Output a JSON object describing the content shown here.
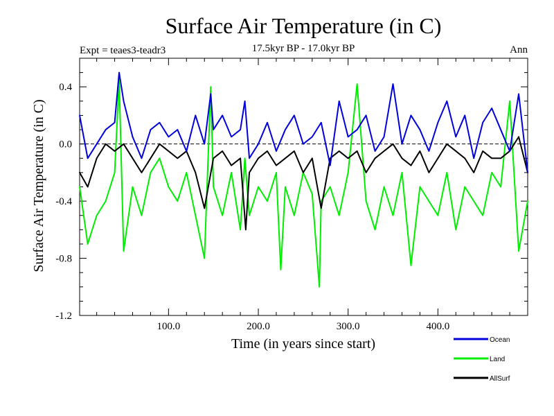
{
  "chart_data": {
    "type": "line",
    "title": "Surface Air Temperature (in C)",
    "subtitle": "17.5kyr BP - 17.0kyr BP",
    "experiment_label": "Expt = teaes3-teadr3",
    "period_label": "Ann",
    "xlabel": "Time (in years since start)",
    "ylabel": "Surface Air Temperature (in C)",
    "xlim": [
      1,
      500
    ],
    "ylim": [
      -1.2,
      0.6
    ],
    "x_ticks": [
      100,
      200,
      300,
      400
    ],
    "x_tick_labels": [
      "100.0",
      "200.0",
      "300.0",
      "400.0"
    ],
    "y_ticks": [
      -1.2,
      -0.8,
      -0.4,
      0.0,
      0.4
    ],
    "y_tick_labels": [
      "-1.2",
      "-0.8",
      "-0.4",
      "0.0",
      "0.4"
    ],
    "reference_line": 0.0,
    "legend_position": "bottom-right",
    "series": [
      {
        "name": "Ocean",
        "color": "#0000dd",
        "x": [
          1,
          10,
          20,
          30,
          40,
          45,
          50,
          60,
          70,
          80,
          90,
          100,
          110,
          120,
          130,
          140,
          147,
          150,
          160,
          170,
          180,
          185,
          190,
          200,
          210,
          220,
          230,
          240,
          250,
          260,
          270,
          280,
          290,
          300,
          310,
          320,
          330,
          340,
          350,
          360,
          370,
          380,
          390,
          400,
          410,
          420,
          430,
          440,
          450,
          460,
          470,
          480,
          490,
          500
        ],
        "values": [
          0.2,
          -0.1,
          0.0,
          0.1,
          0.15,
          0.5,
          0.3,
          0.05,
          -0.1,
          0.1,
          0.15,
          0.05,
          0.1,
          -0.05,
          0.2,
          0.0,
          0.35,
          0.1,
          0.2,
          0.05,
          0.1,
          0.3,
          -0.1,
          0.0,
          0.15,
          -0.05,
          0.1,
          0.2,
          0.0,
          0.05,
          0.15,
          -0.15,
          0.3,
          0.05,
          0.1,
          0.2,
          -0.05,
          0.05,
          0.42,
          0.0,
          0.2,
          0.1,
          -0.05,
          0.15,
          0.3,
          0.05,
          0.2,
          -0.1,
          0.15,
          0.25,
          0.1,
          -0.05,
          0.35,
          -0.2
        ]
      },
      {
        "name": "Land",
        "color": "#00ee00",
        "x": [
          1,
          10,
          20,
          30,
          40,
          45,
          50,
          60,
          70,
          80,
          90,
          100,
          110,
          120,
          130,
          140,
          147,
          150,
          160,
          170,
          180,
          185,
          190,
          200,
          210,
          220,
          225,
          230,
          240,
          250,
          260,
          268,
          270,
          280,
          290,
          300,
          310,
          320,
          330,
          340,
          350,
          360,
          370,
          380,
          390,
          400,
          410,
          420,
          430,
          440,
          450,
          460,
          470,
          480,
          490,
          500
        ],
        "values": [
          -0.3,
          -0.7,
          -0.5,
          -0.4,
          -0.2,
          0.45,
          -0.75,
          -0.3,
          -0.5,
          -0.2,
          -0.1,
          -0.3,
          -0.4,
          -0.2,
          -0.5,
          -0.8,
          0.4,
          -0.3,
          -0.5,
          -0.2,
          -0.6,
          -0.1,
          -0.5,
          -0.3,
          -0.4,
          -0.2,
          -0.88,
          -0.3,
          -0.5,
          -0.2,
          -0.35,
          -1.0,
          -0.4,
          -0.3,
          -0.5,
          -0.2,
          0.42,
          -0.4,
          -0.6,
          -0.3,
          -0.5,
          -0.2,
          -0.85,
          -0.3,
          -0.4,
          -0.5,
          -0.2,
          -0.6,
          -0.3,
          -0.4,
          -0.5,
          -0.2,
          -0.3,
          0.3,
          -0.75,
          -0.4
        ]
      },
      {
        "name": "AllSurf",
        "color": "#000000",
        "x": [
          1,
          10,
          20,
          30,
          40,
          50,
          60,
          70,
          80,
          90,
          100,
          110,
          120,
          130,
          140,
          150,
          160,
          170,
          180,
          186,
          190,
          200,
          210,
          220,
          230,
          240,
          250,
          260,
          270,
          280,
          290,
          300,
          310,
          320,
          330,
          340,
          350,
          360,
          370,
          380,
          390,
          400,
          410,
          420,
          430,
          440,
          450,
          460,
          470,
          480,
          490,
          500
        ],
        "values": [
          -0.2,
          -0.3,
          -0.1,
          0.0,
          -0.05,
          0.0,
          -0.1,
          -0.2,
          -0.1,
          0.0,
          -0.05,
          -0.1,
          -0.05,
          -0.2,
          -0.45,
          -0.1,
          -0.05,
          -0.15,
          -0.1,
          -0.6,
          -0.2,
          -0.1,
          -0.05,
          -0.15,
          -0.1,
          -0.05,
          -0.2,
          -0.1,
          -0.45,
          -0.1,
          -0.05,
          -0.1,
          -0.05,
          -0.2,
          -0.1,
          -0.05,
          0.0,
          -0.1,
          -0.15,
          -0.05,
          -0.2,
          -0.1,
          0.0,
          -0.05,
          -0.1,
          -0.2,
          -0.05,
          -0.1,
          -0.1,
          -0.05,
          0.05,
          -0.2
        ]
      }
    ]
  }
}
